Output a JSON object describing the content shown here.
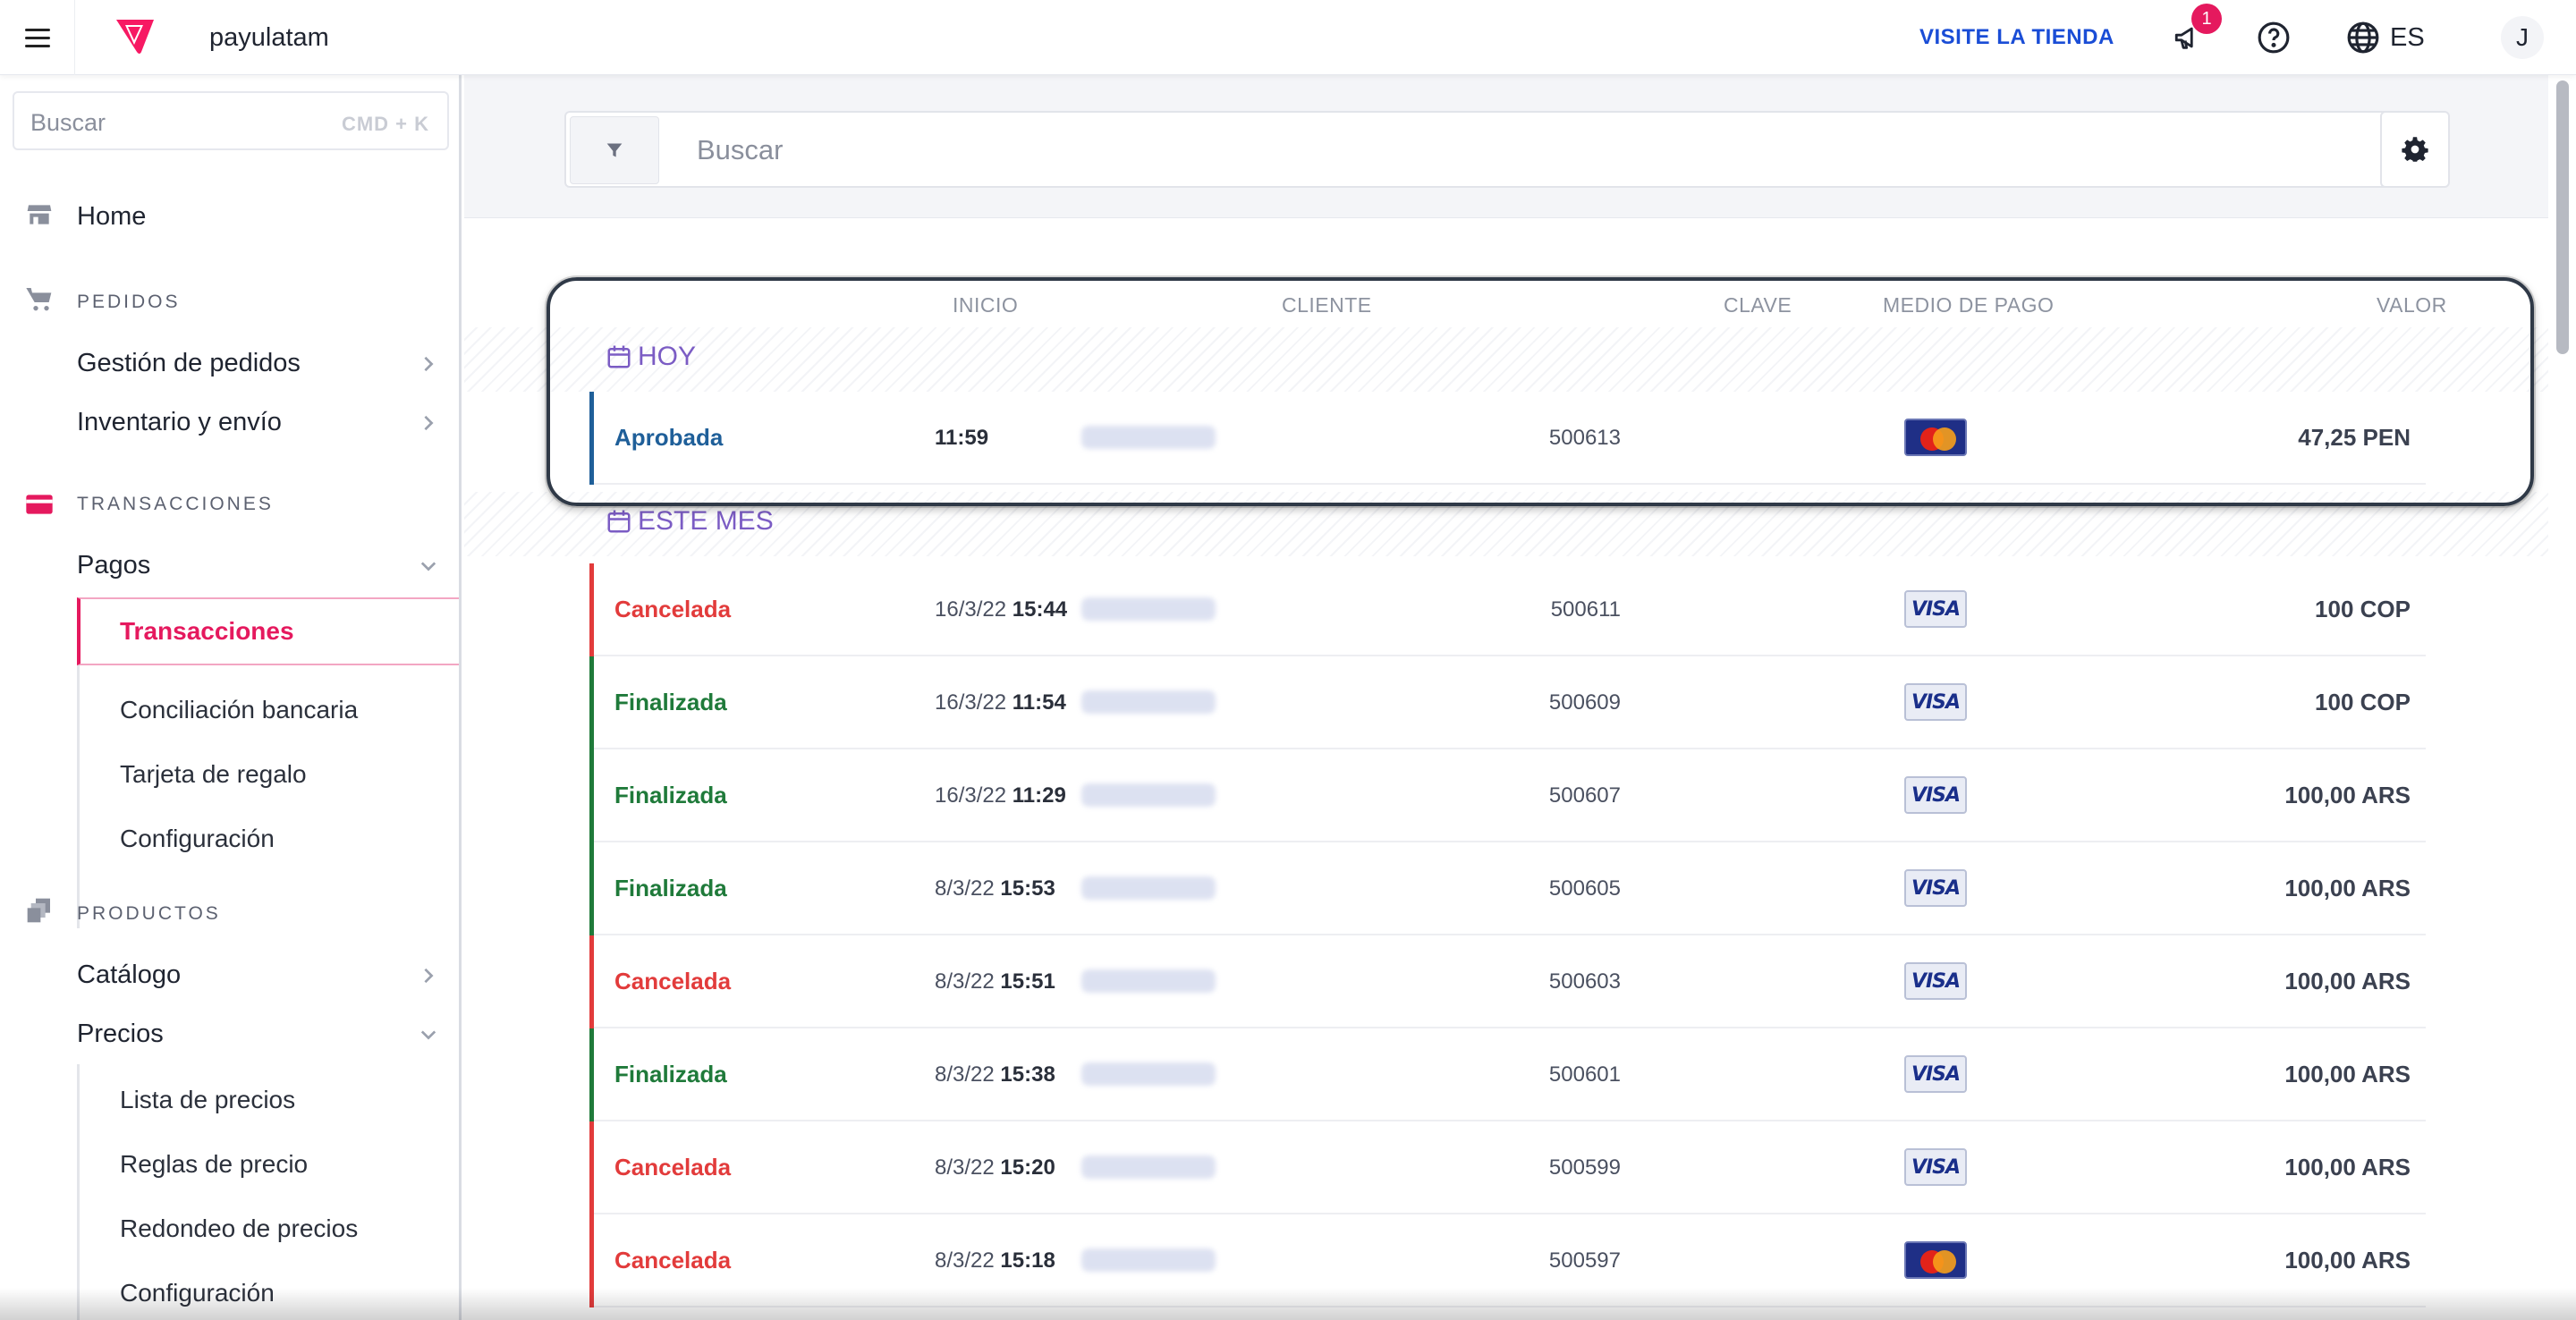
{
  "topbar": {
    "store_name": "payulatam",
    "visit_store": "VISITE LA TIENDA",
    "notification_count": "1",
    "language": "ES",
    "user_initial": "J"
  },
  "sidebar": {
    "search_placeholder": "Buscar",
    "search_shortcut": "CMD + K",
    "home": "Home",
    "sections": {
      "pedidos": "PEDIDOS",
      "transacciones": "TRANSACCIONES",
      "productos": "PRODUCTOS"
    },
    "items": {
      "gestion_pedidos": "Gestión de pedidos",
      "inventario_envio": "Inventario y envío",
      "pagos": "Pagos",
      "transacciones": "Transacciones",
      "conciliacion": "Conciliación bancaria",
      "tarjeta_regalo": "Tarjeta de regalo",
      "configuracion_pagos": "Configuración",
      "catalogo": "Catálogo",
      "precios": "Precios",
      "lista_precios": "Lista de precios",
      "reglas_precio": "Reglas de precio",
      "redondeo": "Redondeo de precios",
      "configuracion_precios": "Configuración"
    }
  },
  "main": {
    "search_placeholder": "Buscar",
    "columns": {
      "inicio": "INICIO",
      "cliente": "CLIENTE",
      "clave": "CLAVE",
      "medio_pago": "MEDIO DE PAGO",
      "valor": "VALOR"
    },
    "groups": {
      "today": "HOY",
      "this_month": "ESTE MES"
    },
    "today_rows": [
      {
        "status": "Aprobada",
        "status_color": "#1f5f99",
        "date": "",
        "time": "11:59",
        "key": "500613",
        "card": "mastercard",
        "amount": "47,25 PEN"
      }
    ],
    "month_rows": [
      {
        "status": "Cancelada",
        "status_color": "#e23b3b",
        "date": "16/3/22",
        "time": "15:44",
        "key": "500611",
        "card": "visa",
        "amount": "100 COP"
      },
      {
        "status": "Finalizada",
        "status_color": "#1f7a3a",
        "date": "16/3/22",
        "time": "11:54",
        "key": "500609",
        "card": "visa",
        "amount": "100 COP"
      },
      {
        "status": "Finalizada",
        "status_color": "#1f7a3a",
        "date": "16/3/22",
        "time": "11:29",
        "key": "500607",
        "card": "visa",
        "amount": "100,00 ARS"
      },
      {
        "status": "Finalizada",
        "status_color": "#1f7a3a",
        "date": "8/3/22",
        "time": "15:53",
        "key": "500605",
        "card": "visa",
        "amount": "100,00 ARS"
      },
      {
        "status": "Cancelada",
        "status_color": "#e23b3b",
        "date": "8/3/22",
        "time": "15:51",
        "key": "500603",
        "card": "visa",
        "amount": "100,00 ARS"
      },
      {
        "status": "Finalizada",
        "status_color": "#1f7a3a",
        "date": "8/3/22",
        "time": "15:38",
        "key": "500601",
        "card": "visa",
        "amount": "100,00 ARS"
      },
      {
        "status": "Cancelada",
        "status_color": "#e23b3b",
        "date": "8/3/22",
        "time": "15:20",
        "key": "500599",
        "card": "visa",
        "amount": "100,00 ARS"
      },
      {
        "status": "Cancelada",
        "status_color": "#e23b3b",
        "date": "8/3/22",
        "time": "15:18",
        "key": "500597",
        "card": "mastercard",
        "amount": "100,00 ARS"
      }
    ]
  },
  "colors": {
    "brand_accent": "#e5195e",
    "link_blue": "#1a4dd6",
    "group_label": "#7b5cc4"
  }
}
